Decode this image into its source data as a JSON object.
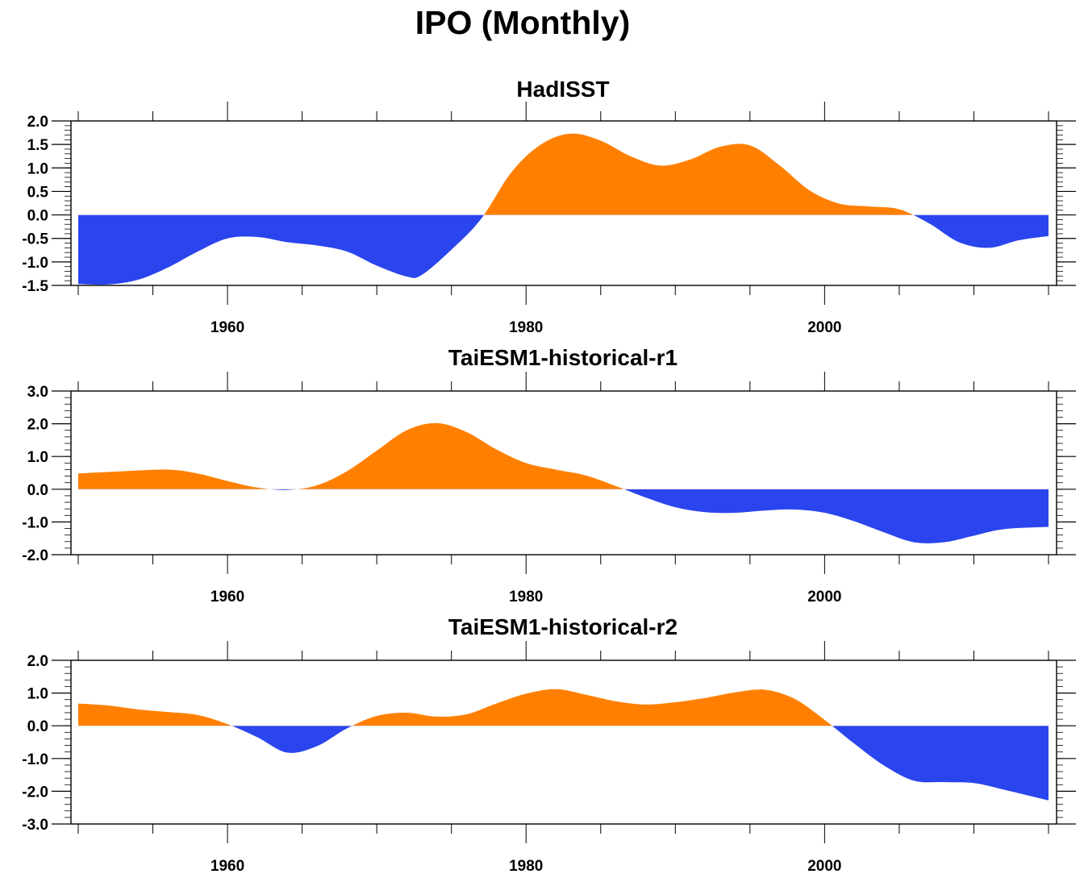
{
  "title": "IPO (Monthly)",
  "colors": {
    "positive": "#ff8000",
    "negative": "#2a45ee",
    "axis": "#000000"
  },
  "chart_data": [
    {
      "type": "area",
      "title": "HadISST",
      "xlabel": "",
      "ylabel": "",
      "xlim": [
        1950,
        2015
      ],
      "ylim": [
        -1.5,
        2.0
      ],
      "yticks": [
        -1.5,
        -1.0,
        -0.5,
        0.0,
        0.5,
        1.0,
        1.5,
        2.0
      ],
      "ytick_labels": [
        "-1.5",
        "-1.0",
        "-0.5",
        "0.0",
        "0.5",
        "1.0",
        "1.5",
        "2.0"
      ],
      "xticks": [
        1960,
        1980,
        2000
      ],
      "xtick_labels": [
        "1960",
        "1980",
        "2000"
      ],
      "fill_positive": "#ff8000",
      "fill_negative": "#2a45ee",
      "x": [
        1950,
        1952,
        1954,
        1956,
        1958,
        1960,
        1962,
        1964,
        1966,
        1968,
        1970,
        1972,
        1973,
        1975,
        1977,
        1979,
        1981,
        1983,
        1985,
        1987,
        1989,
        1991,
        1993,
        1995,
        1997,
        1999,
        2001,
        2003,
        2005,
        2007,
        2009,
        2011,
        2013,
        2015
      ],
      "values": [
        -1.47,
        -1.48,
        -1.38,
        -1.12,
        -0.78,
        -0.5,
        -0.47,
        -0.58,
        -0.65,
        -0.78,
        -1.08,
        -1.31,
        -1.28,
        -0.74,
        -0.08,
        0.9,
        1.5,
        1.73,
        1.58,
        1.25,
        1.05,
        1.18,
        1.45,
        1.48,
        1.05,
        0.52,
        0.24,
        0.18,
        0.12,
        -0.18,
        -0.58,
        -0.7,
        -0.54,
        -0.45
      ]
    },
    {
      "type": "area",
      "title": "TaiESM1-historical-r1",
      "xlabel": "",
      "ylabel": "",
      "xlim": [
        1950,
        2015
      ],
      "ylim": [
        -2.0,
        3.0
      ],
      "yticks": [
        -2.0,
        -1.0,
        0.0,
        1.0,
        2.0,
        3.0
      ],
      "ytick_labels": [
        "-2.0",
        "-1.0",
        "0.0",
        "1.0",
        "2.0",
        "3.0"
      ],
      "xticks": [
        1960,
        1980,
        2000
      ],
      "xtick_labels": [
        "1960",
        "1980",
        "2000"
      ],
      "fill_positive": "#ff8000",
      "fill_negative": "#2a45ee",
      "x": [
        1950,
        1953,
        1956,
        1958,
        1960,
        1962,
        1964,
        1966,
        1968,
        1970,
        1972,
        1974,
        1976,
        1978,
        1980,
        1982,
        1984,
        1986,
        1988,
        1990,
        1992,
        1994,
        1996,
        1998,
        2000,
        2002,
        2004,
        2006,
        2008,
        2010,
        2012,
        2015
      ],
      "values": [
        0.48,
        0.55,
        0.6,
        0.48,
        0.25,
        0.05,
        -0.02,
        0.12,
        0.55,
        1.18,
        1.8,
        2.02,
        1.75,
        1.22,
        0.8,
        0.6,
        0.42,
        0.1,
        -0.25,
        -0.55,
        -0.7,
        -0.72,
        -0.65,
        -0.62,
        -0.72,
        -0.98,
        -1.32,
        -1.62,
        -1.62,
        -1.42,
        -1.22,
        -1.15
      ]
    },
    {
      "type": "area",
      "title": "TaiESM1-historical-r2",
      "xlabel": "",
      "ylabel": "",
      "xlim": [
        1950,
        2015
      ],
      "ylim": [
        -3.0,
        2.0
      ],
      "yticks": [
        -3.0,
        -2.0,
        -1.0,
        0.0,
        1.0,
        2.0
      ],
      "ytick_labels": [
        "-3.0",
        "-2.0",
        "-1.0",
        "0.0",
        "1.0",
        "2.0"
      ],
      "xticks": [
        1960,
        1980,
        2000
      ],
      "xtick_labels": [
        "1960",
        "1980",
        "2000"
      ],
      "fill_positive": "#ff8000",
      "fill_negative": "#2a45ee",
      "x": [
        1950,
        1952,
        1954,
        1956,
        1958,
        1960,
        1962,
        1964,
        1966,
        1968,
        1970,
        1972,
        1974,
        1976,
        1978,
        1980,
        1982,
        1984,
        1986,
        1988,
        1990,
        1992,
        1994,
        1996,
        1998,
        2000,
        2002,
        2004,
        2006,
        2008,
        2010,
        2012,
        2015
      ],
      "values": [
        0.68,
        0.62,
        0.5,
        0.42,
        0.33,
        0.05,
        -0.35,
        -0.82,
        -0.62,
        -0.08,
        0.3,
        0.4,
        0.28,
        0.35,
        0.68,
        0.98,
        1.12,
        0.95,
        0.75,
        0.65,
        0.72,
        0.85,
        1.02,
        1.1,
        0.82,
        0.18,
        -0.55,
        -1.22,
        -1.68,
        -1.72,
        -1.75,
        -1.95,
        -2.28
      ]
    }
  ]
}
